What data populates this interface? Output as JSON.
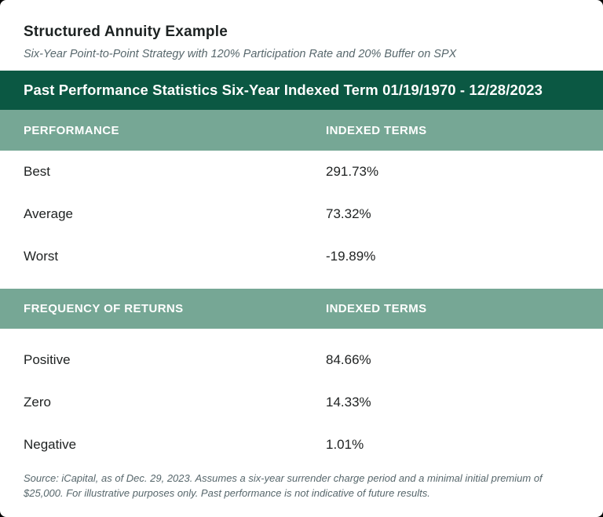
{
  "card": {
    "title": "Structured Annuity Example",
    "subtitle": "Six-Year Point-to-Point Strategy with 120% Participation Rate and 20% Buffer on SPX",
    "banner": "Past Performance Statistics Six-Year Indexed Term 01/19/1970 - 12/28/2023",
    "footnote": "Source: iCapital, as of Dec. 29, 2023. Assumes a six-year surrender charge period and a minimal initial premium of $25,000. For illustrative purposes only. Past performance is not indicative of future results."
  },
  "performance": {
    "header_label": "PERFORMANCE",
    "header_value": "INDEXED TERMS",
    "rows": [
      {
        "label": "Best",
        "value": "291.73%"
      },
      {
        "label": "Average",
        "value": "73.32%"
      },
      {
        "label": "Worst",
        "value": "-19.89%"
      }
    ]
  },
  "frequency": {
    "header_label": "FREQUENCY OF RETURNS",
    "header_value": "INDEXED TERMS",
    "rows": [
      {
        "label": "Positive",
        "value": "84.66%"
      },
      {
        "label": "Zero",
        "value": "14.33%"
      },
      {
        "label": "Negative",
        "value": "1.01%"
      }
    ]
  },
  "colors": {
    "banner_green": "#0B5843",
    "header_teal": "#76A795",
    "text_dark": "#1E2121",
    "muted_slate": "#57676C",
    "card_background": "#FFFFFF"
  },
  "chart_data": {
    "type": "table",
    "title": "Past Performance Statistics Six-Year Indexed Term 01/19/1970 - 12/28/2023",
    "subtitle": "Six-Year Point-to-Point Strategy with 120% Participation Rate and 20% Buffer on SPX",
    "tables": [
      {
        "columns": [
          "PERFORMANCE",
          "INDEXED TERMS"
        ],
        "rows": [
          [
            "Best",
            "291.73%"
          ],
          [
            "Average",
            "73.32%"
          ],
          [
            "Worst",
            "-19.89%"
          ]
        ]
      },
      {
        "columns": [
          "FREQUENCY OF RETURNS",
          "INDEXED TERMS"
        ],
        "rows": [
          [
            "Positive",
            "84.66%"
          ],
          [
            "Zero",
            "14.33%"
          ],
          [
            "Negative",
            "1.01%"
          ]
        ]
      }
    ],
    "notes": "Source: iCapital, as of Dec. 29, 2023. Assumes a six-year surrender charge period and a minimal initial premium of $25,000. For illustrative purposes only. Past performance is not indicative of future results."
  }
}
